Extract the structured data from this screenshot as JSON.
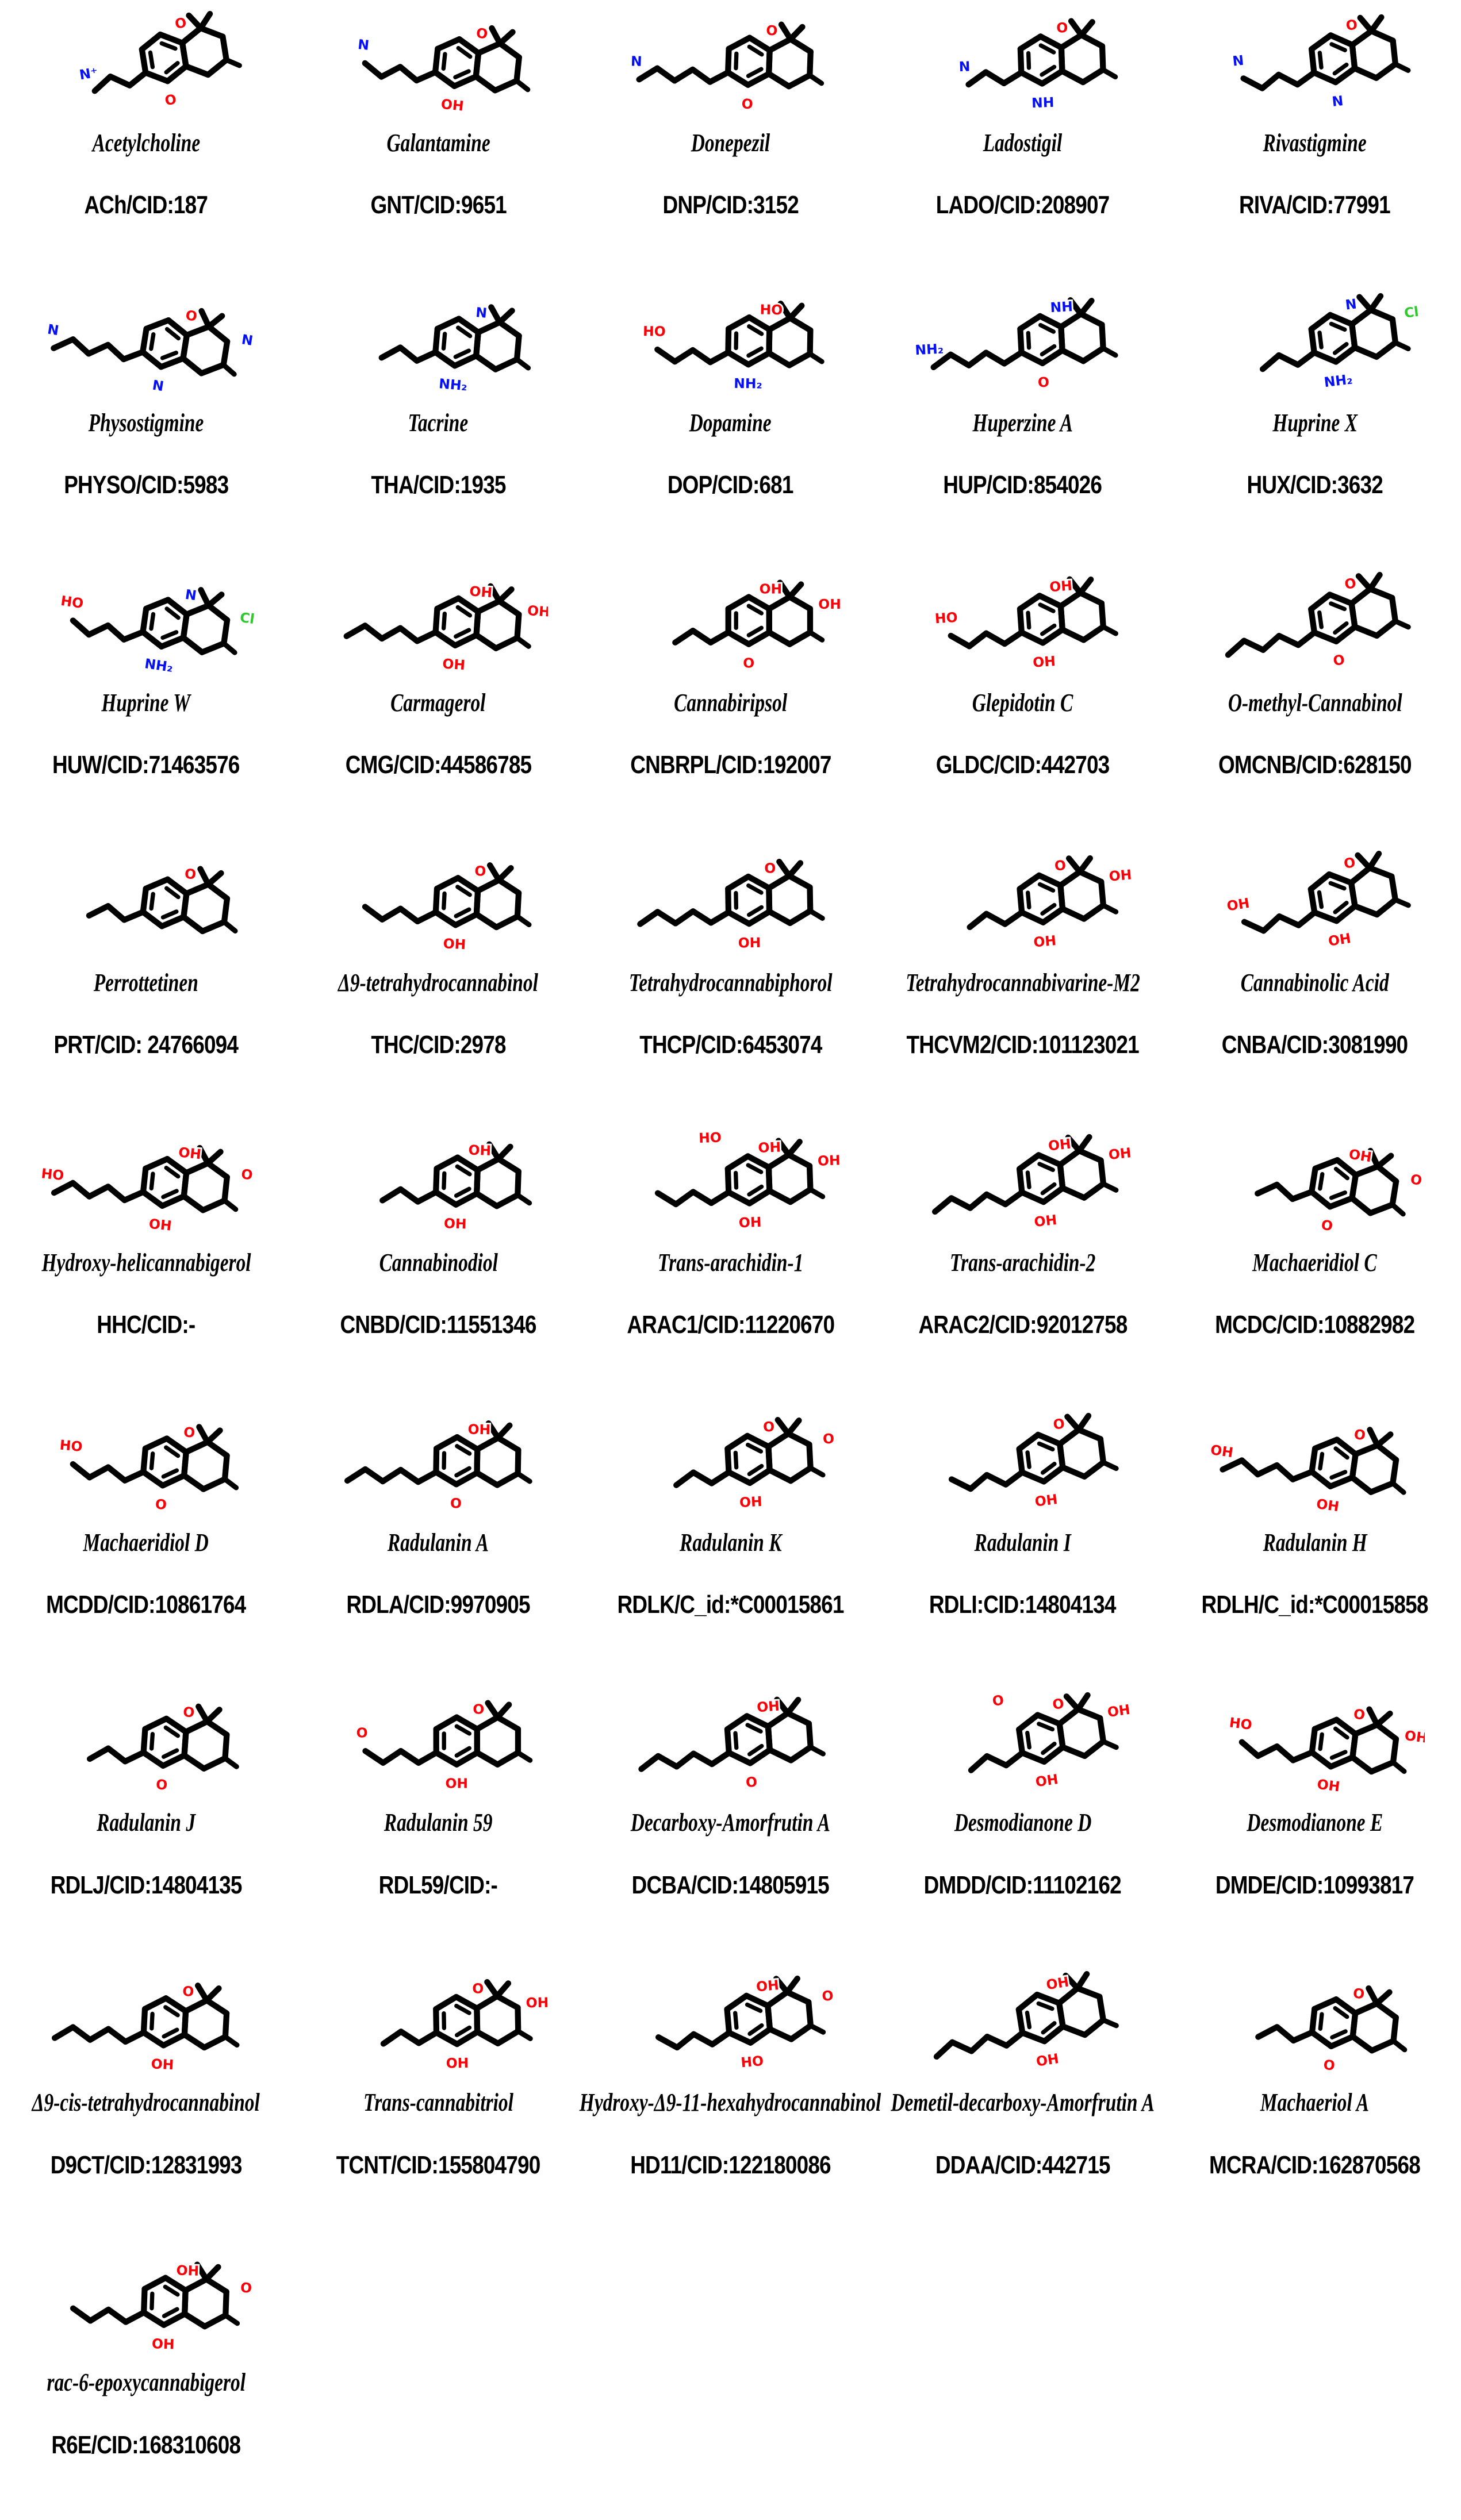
{
  "figure": {
    "description": "Grid of chemical structures with compound names and PubChem CID labels",
    "columns": 5,
    "rows": 9
  },
  "palette": {
    "background": "#ffffff",
    "bond": "#000000",
    "oxygen": "#fb0007",
    "nitrogen": "#0510f7",
    "chlorine": "#2dc92d",
    "label": "#000000"
  },
  "molecules": [
    {
      "name": "Acetylcholine",
      "code": "ACh/CID:187",
      "atoms": [
        "O",
        "O",
        "N⁺"
      ]
    },
    {
      "name": "Galantamine",
      "code": "GNT/CID:9651",
      "atoms": [
        "O",
        "OH",
        "N"
      ]
    },
    {
      "name": "Donepezil",
      "code": "DNP/CID:3152",
      "atoms": [
        "O",
        "O",
        "N"
      ]
    },
    {
      "name": "Ladostigil",
      "code": "LADO/CID:208907",
      "atoms": [
        "O",
        "NH",
        "N"
      ]
    },
    {
      "name": "Rivastigmine",
      "code": "RIVA/CID:77991",
      "atoms": [
        "O",
        "N",
        "N"
      ]
    },
    {
      "name": "Physostigmine",
      "code": "PHYSO/CID:5983",
      "atoms": [
        "O",
        "N",
        "N",
        "N"
      ]
    },
    {
      "name": "Tacrine",
      "code": "THA/CID:1935",
      "atoms": [
        "N",
        "NH₂"
      ]
    },
    {
      "name": "Dopamine",
      "code": "DOP/CID:681",
      "atoms": [
        "HO",
        "NH₂",
        "HO"
      ]
    },
    {
      "name": "Huperzine A",
      "code": "HUP/CID:854026",
      "atoms": [
        "NH",
        "O",
        "NH₂"
      ]
    },
    {
      "name": "Huprine X",
      "code": "HUX/CID:3632",
      "atoms": [
        "N",
        "NH₂",
        "",
        "Cl"
      ]
    },
    {
      "name": "Huprine W",
      "code": "HUW/CID:71463576",
      "atoms": [
        "N",
        "NH₂",
        "HO",
        "Cl"
      ]
    },
    {
      "name": "Carmagerol",
      "code": "CMG/CID:44586785",
      "atoms": [
        "OH",
        "OH",
        "",
        "OH"
      ]
    },
    {
      "name": "Cannabiripsol",
      "code": "CNBRPL/CID:192007",
      "atoms": [
        "OH",
        "O",
        "",
        "OH"
      ]
    },
    {
      "name": "Glepidotin C",
      "code": "GLDC/CID:442703",
      "atoms": [
        "OH",
        "OH",
        "HO"
      ]
    },
    {
      "name": "O-methyl-Cannabinol",
      "code": "OMCNB/CID:628150",
      "atoms": [
        "O",
        "O"
      ]
    },
    {
      "name": "Perrottetinen",
      "code": "PRT/CID: 24766094",
      "atoms": [
        "O"
      ]
    },
    {
      "name": "Δ9-tetrahydrocannabinol",
      "code": "THC/CID:2978",
      "atoms": [
        "O",
        "OH"
      ]
    },
    {
      "name": "Tetrahydrocannabiphorol",
      "code": "THCP/CID:6453074",
      "atoms": [
        "O",
        "OH"
      ]
    },
    {
      "name": "Tetrahydrocannabivarine-M2",
      "code": "THCVM2/CID:101123021",
      "atoms": [
        "O",
        "OH",
        "",
        "OH"
      ]
    },
    {
      "name": "Cannabinolic Acid",
      "code": "CNBA/CID:3081990",
      "atoms": [
        "O",
        "OH",
        "OH"
      ]
    },
    {
      "name": "Hydroxy-helicannabigerol",
      "code": "HHC/CID:-",
      "atoms": [
        "OH",
        "OH",
        "HO",
        "O"
      ]
    },
    {
      "name": "Cannabinodiol",
      "code": "CNBD/CID:11551346",
      "atoms": [
        "OH",
        "OH"
      ]
    },
    {
      "name": "Trans-arachidin-1",
      "code": "ARAC1/CID:11220670",
      "atoms": [
        "OH",
        "OH",
        "",
        "OH",
        "HO"
      ]
    },
    {
      "name": "Trans-arachidin-2",
      "code": "ARAC2/CID:92012758",
      "atoms": [
        "OH",
        "OH",
        "",
        "OH"
      ]
    },
    {
      "name": "Machaeridiol C",
      "code": "MCDC/CID:10882982",
      "atoms": [
        "OH",
        "O",
        "",
        "O"
      ]
    },
    {
      "name": "Machaeridiol D",
      "code": "MCDD/CID:10861764",
      "atoms": [
        "O",
        "O",
        "HO"
      ]
    },
    {
      "name": "Radulanin A",
      "code": "RDLA/CID:9970905",
      "atoms": [
        "OH",
        "O"
      ]
    },
    {
      "name": "Radulanin K",
      "code": "RDLK/C_id:*C00015861",
      "atoms": [
        "O",
        "OH",
        "",
        "O"
      ]
    },
    {
      "name": "Radulanin I",
      "code": "RDLI:CID:14804134",
      "atoms": [
        "O",
        "OH"
      ]
    },
    {
      "name": "Radulanin H",
      "code": "RDLH/C_id:*C00015858",
      "atoms": [
        "O",
        "OH",
        "OH"
      ]
    },
    {
      "name": "Radulanin J",
      "code": "RDLJ/CID:14804135",
      "atoms": [
        "O",
        "O"
      ]
    },
    {
      "name": "Radulanin 59",
      "code": "RDL59/CID:-",
      "atoms": [
        "O",
        "OH",
        "O"
      ]
    },
    {
      "name": "Decarboxy-Amorfrutin A",
      "code": "DCBA/CID:14805915",
      "atoms": [
        "OH",
        "O"
      ]
    },
    {
      "name": "Desmodianone D",
      "code": "DMDD/CID:11102162",
      "atoms": [
        "O",
        "OH",
        "",
        "OH",
        "O"
      ]
    },
    {
      "name": "Desmodianone E",
      "code": "DMDE/CID:10993817",
      "atoms": [
        "O",
        "OH",
        "HO",
        "OH"
      ]
    },
    {
      "name": "Δ9-cis-tetrahydrocannabinol",
      "code": "D9CT/CID:12831993",
      "atoms": [
        "O",
        "OH"
      ]
    },
    {
      "name": "Trans-cannabitriol",
      "code": "TCNT/CID:155804790",
      "atoms": [
        "O",
        "OH",
        "",
        "OH"
      ]
    },
    {
      "name": "Hydroxy-Δ9-11-hexahydrocannabinol",
      "code": "HD11/CID:122180086",
      "atoms": [
        "OH",
        "HO",
        "",
        "O"
      ]
    },
    {
      "name": "Demetil-decarboxy-Amorfrutin A",
      "code": "DDAA/CID:442715",
      "atoms": [
        "OH",
        "OH"
      ]
    },
    {
      "name": "Machaeriol A",
      "code": "MCRA/CID:162870568",
      "atoms": [
        "O",
        "O"
      ]
    },
    {
      "name": "rac-6-epoxycannabigerol",
      "code": "R6E/CID:168310608",
      "atoms": [
        "OH",
        "OH",
        "",
        "O"
      ]
    }
  ]
}
